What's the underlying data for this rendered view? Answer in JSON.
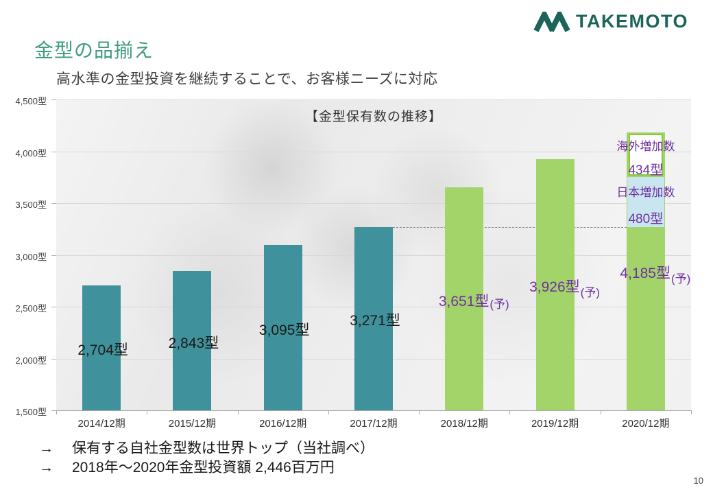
{
  "slide": {
    "logo": {
      "mark": "two-peak-M",
      "text": "TAKEMOTO",
      "color": "#1B6459"
    },
    "title": "金型の品揃え",
    "subtitle": "高水準の金型投資を継続することで、お客様ニーズに対応",
    "bullets": [
      {
        "arrow": "→",
        "text": "保有する自社金型数は世界トップ（当社調べ）"
      },
      {
        "arrow": "→",
        "text": "2018年～2020年金型投資額 2,446百万円"
      }
    ],
    "page_number": "10"
  },
  "chart_data": {
    "type": "bar",
    "title": "【金型保有数の推移】",
    "unit": "型",
    "categories": [
      "2014/12期",
      "2015/12期",
      "2016/12期",
      "2017/12期",
      "2018/12期",
      "2019/12期",
      "2020/12期"
    ],
    "values": [
      2704,
      2843,
      3095,
      3271,
      3651,
      3926,
      4185
    ],
    "bar_labels": [
      "2,704型",
      "2,843型",
      "3,095型",
      "3,271型",
      "3,651型",
      "3,926型",
      "4,185型"
    ],
    "is_forecast": [
      false,
      false,
      false,
      false,
      true,
      true,
      true
    ],
    "forecast_suffix": "(予)",
    "ylim": [
      1500,
      4500
    ],
    "y_tick_step": 500,
    "y_tick_labels": [
      "4,500型",
      "4,000型",
      "3,500型",
      "3,000型",
      "2,500型",
      "2,000型",
      "1,500型"
    ],
    "grid": true,
    "legend": "none",
    "colors": {
      "actual_bar": "#3F929B",
      "forecast_bar": "#A3D469",
      "actual_label": "#1A1A1A",
      "forecast_label": "#7030A0",
      "annotation_text": "#7030A0",
      "annotation_border_green": "#86C93F",
      "annotation_fill_blue": "#C9E6F0"
    },
    "dashed_reference": {
      "value": 3271,
      "from_category": "2017/12期",
      "to_category": "2020/12期"
    },
    "annotations_on_last_bar": [
      {
        "label": "海外増加数",
        "value_label": "434型",
        "amount": 434,
        "fill": "#FFFFFF",
        "border": "#86C93F"
      },
      {
        "label": "日本増加数",
        "value_label": "480型",
        "amount": 480,
        "fill": "#C9E6F0",
        "border": null
      }
    ]
  }
}
